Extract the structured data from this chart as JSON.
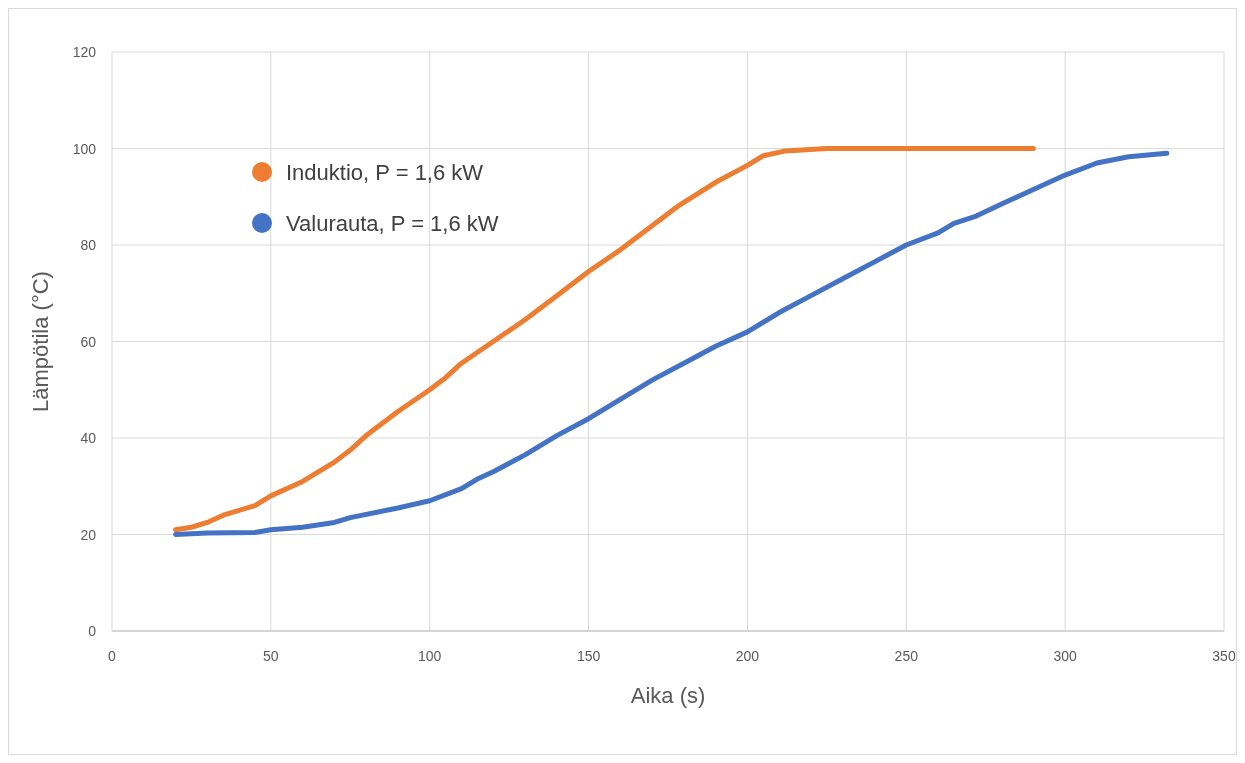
{
  "chart_data": {
    "type": "line",
    "xlabel": "Aika (s)",
    "ylabel": "Lämpötila (°C)",
    "xlim": [
      0,
      350
    ],
    "xticks": [
      0,
      50,
      100,
      150,
      200,
      250,
      300,
      350
    ],
    "ylim": [
      0,
      120
    ],
    "yticks": [
      0,
      20,
      40,
      60,
      80,
      100,
      120
    ],
    "grid": true,
    "legend": "top left",
    "series": [
      {
        "name": "Induktio, P = 1,6 kW",
        "color": "#ed7d31",
        "x": [
          20,
          25,
          30,
          35,
          45,
          50,
          60,
          70,
          75,
          80,
          90,
          100,
          105,
          110,
          120,
          130,
          140,
          150,
          160,
          170,
          178,
          190,
          200,
          205,
          212,
          225,
          290
        ],
        "values": [
          21,
          21.5,
          22.5,
          24,
          26,
          28,
          31,
          35,
          37.5,
          40.5,
          45.5,
          50,
          52.5,
          55.5,
          60,
          64.5,
          69.5,
          74.5,
          79,
          84,
          88,
          93,
          96.5,
          98.5,
          99.5,
          100,
          100
        ]
      },
      {
        "name": "Valurauta, P = 1,6 kW",
        "color": "#4472c4",
        "x": [
          20,
          30,
          45,
          50,
          60,
          70,
          75,
          90,
          100,
          110,
          115,
          120,
          130,
          140,
          150,
          160,
          170,
          180,
          190,
          200,
          210,
          220,
          230,
          240,
          250,
          260,
          265,
          272,
          280,
          290,
          300,
          310,
          320,
          332
        ],
        "values": [
          20,
          20.3,
          20.4,
          21,
          21.5,
          22.5,
          23.5,
          25.5,
          27,
          29.5,
          31.5,
          33,
          36.5,
          40.5,
          44,
          48,
          52,
          55.5,
          59,
          62,
          66,
          69.5,
          73,
          76.5,
          80,
          82.5,
          84.5,
          86,
          88.5,
          91.5,
          94.5,
          97,
          98.3,
          99
        ]
      }
    ]
  }
}
